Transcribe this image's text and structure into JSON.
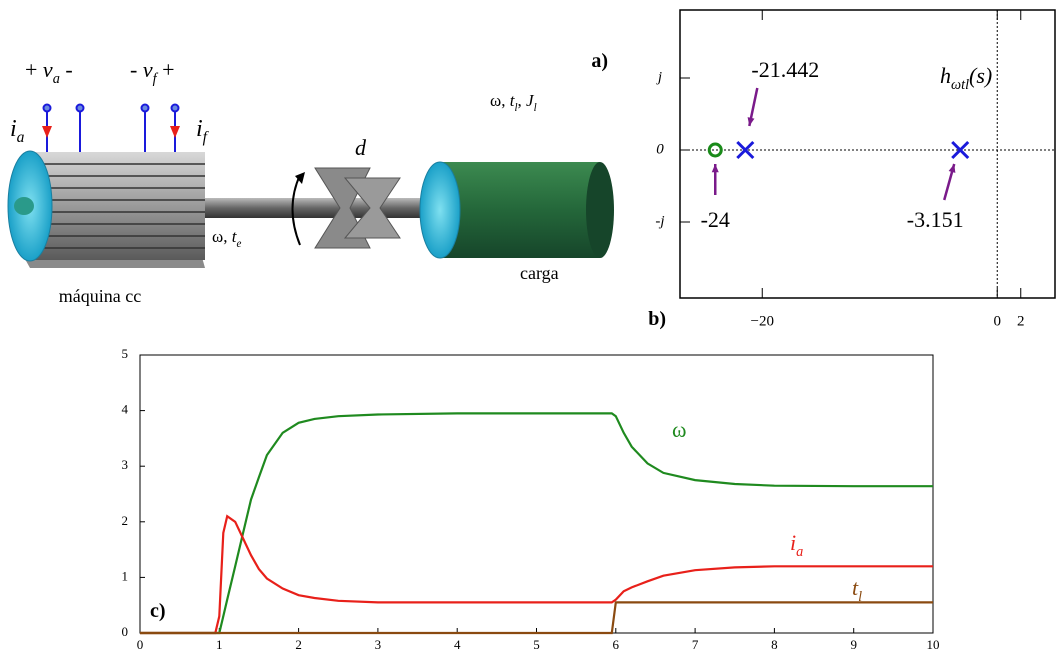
{
  "diagram": {
    "va": [
      "+ ",
      "v",
      "a",
      " -"
    ],
    "vf": [
      "- ",
      "v",
      "f",
      " +"
    ],
    "ia": [
      "i",
      "a"
    ],
    "if": [
      "i",
      "f"
    ],
    "d": "d",
    "we": [
      "ω, ",
      "t",
      "e"
    ],
    "machine": "máquina cc",
    "load_params": [
      "ω, ",
      "t",
      "l",
      ", ",
      "J",
      "l"
    ],
    "load": "carga",
    "panel": "a)"
  },
  "chart_data": [
    {
      "type": "pole-zero",
      "panel": "b)",
      "transfer_function": [
        "h",
        "ωtl",
        "(s)"
      ],
      "poles": {
        "x": [
          -21.442,
          -3.151
        ],
        "values": [
          0,
          0
        ],
        "x_labels": [
          "-21.442",
          "-3.151"
        ],
        "color": "#1a1adb"
      },
      "zeros": {
        "x": [
          -24
        ],
        "values": [
          0
        ],
        "x_labels": [
          "-24"
        ],
        "color": "#1a8a1a"
      },
      "xlim": [
        -27,
        5
      ],
      "xticks": [
        {
          "value": -20,
          "label": "−20"
        },
        0,
        2
      ],
      "ylim": [
        -2,
        2
      ],
      "yticks": [
        {
          "value": 1,
          "label": "j"
        },
        0,
        {
          "value": -1,
          "label": "-j"
        }
      ]
    },
    {
      "type": "line",
      "panel": "c)",
      "x": [
        0,
        0.95,
        1.0,
        1.05,
        1.1,
        1.2,
        1.3,
        1.4,
        1.5,
        1.6,
        1.8,
        2.0,
        2.2,
        2.5,
        3,
        4,
        5,
        5.95,
        6.0,
        6.1,
        6.2,
        6.4,
        6.6,
        7,
        7.5,
        8,
        9,
        10
      ],
      "series": [
        {
          "name": "ω",
          "color": "#1f8a1f",
          "values": [
            0,
            0,
            0,
            0.3,
            0.6,
            1.2,
            1.8,
            2.4,
            2.8,
            3.2,
            3.6,
            3.78,
            3.85,
            3.9,
            3.93,
            3.95,
            3.95,
            3.95,
            3.9,
            3.6,
            3.35,
            3.05,
            2.88,
            2.75,
            2.68,
            2.65,
            2.64,
            2.64
          ]
        },
        {
          "name": "i",
          "name_sub": "a",
          "color": "#e8201a",
          "values": [
            0,
            0,
            0.3,
            1.8,
            2.1,
            2.0,
            1.7,
            1.4,
            1.15,
            0.98,
            0.8,
            0.68,
            0.63,
            0.58,
            0.55,
            0.55,
            0.55,
            0.55,
            0.6,
            0.75,
            0.82,
            0.93,
            1.03,
            1.13,
            1.18,
            1.2,
            1.2,
            1.2
          ]
        },
        {
          "name": "t",
          "name_sub": "l",
          "color": "#8a4a10",
          "values": [
            0,
            0,
            0,
            0,
            0,
            0,
            0,
            0,
            0,
            0,
            0,
            0,
            0,
            0,
            0,
            0,
            0,
            0,
            0.55,
            0.55,
            0.55,
            0.55,
            0.55,
            0.55,
            0.55,
            0.55,
            0.55,
            0.55
          ]
        }
      ],
      "xlim": [
        0,
        10
      ],
      "xticks": [
        0,
        1,
        2,
        3,
        4,
        5,
        6,
        7,
        8,
        9,
        10
      ],
      "ylim": [
        0,
        5
      ],
      "yticks": [
        0,
        1,
        2,
        3,
        4,
        5
      ]
    }
  ]
}
